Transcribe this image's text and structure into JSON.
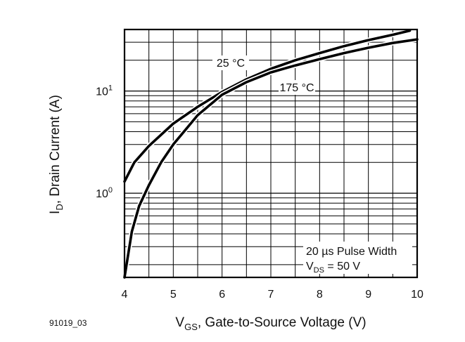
{
  "chart_data": {
    "type": "line",
    "x_scale": "linear",
    "y_scale": "log",
    "xlim": [
      4,
      10
    ],
    "ylim": [
      0.15,
      40
    ],
    "x_ticks": [
      {
        "value": 4,
        "label": "4"
      },
      {
        "value": 5,
        "label": "5"
      },
      {
        "value": 6,
        "label": "6"
      },
      {
        "value": 7,
        "label": "7"
      },
      {
        "value": 8,
        "label": "8"
      },
      {
        "value": 9,
        "label": "9"
      },
      {
        "value": 10,
        "label": "10"
      }
    ],
    "y_ticks": [
      {
        "value": 1,
        "base": "10",
        "exp": "0"
      },
      {
        "value": 10,
        "base": "10",
        "exp": "1"
      }
    ],
    "xlabel": {
      "main": "V",
      "sub": "GS",
      "rest": ", Gate-to-Source Voltage (V)"
    },
    "ylabel": {
      "main": "I",
      "sub": "D",
      "rest": ", Drain Current (A)"
    },
    "grid": true,
    "series": [
      {
        "name": "25 °C",
        "x": [
          4.0,
          4.2,
          4.5,
          5.0,
          5.5,
          6.0,
          6.5,
          7.0,
          7.5,
          8.0,
          8.5,
          9.0,
          9.5,
          9.85
        ],
        "y": [
          1.3,
          2.0,
          2.9,
          4.8,
          7.0,
          9.8,
          13.0,
          16.5,
          20.0,
          23.5,
          27.5,
          31.5,
          35.5,
          39.0
        ]
      },
      {
        "name": "175 °C",
        "x": [
          4.0,
          4.15,
          4.3,
          4.5,
          4.75,
          5.0,
          5.5,
          6.0,
          6.5,
          7.0,
          7.5,
          8.0,
          8.5,
          9.0,
          9.5,
          10.0
        ],
        "y": [
          0.15,
          0.42,
          0.75,
          1.2,
          2.0,
          3.0,
          5.8,
          9.2,
          12.2,
          15.2,
          17.8,
          20.5,
          23.5,
          26.5,
          29.5,
          32.0
        ]
      }
    ],
    "annotations": [
      {
        "line1": "20 µs Pulse Width",
        "line2_main": "V",
        "line2_sub": "DS",
        "line2_rest": " = 50 V"
      }
    ]
  },
  "figure_id": "91019_03"
}
